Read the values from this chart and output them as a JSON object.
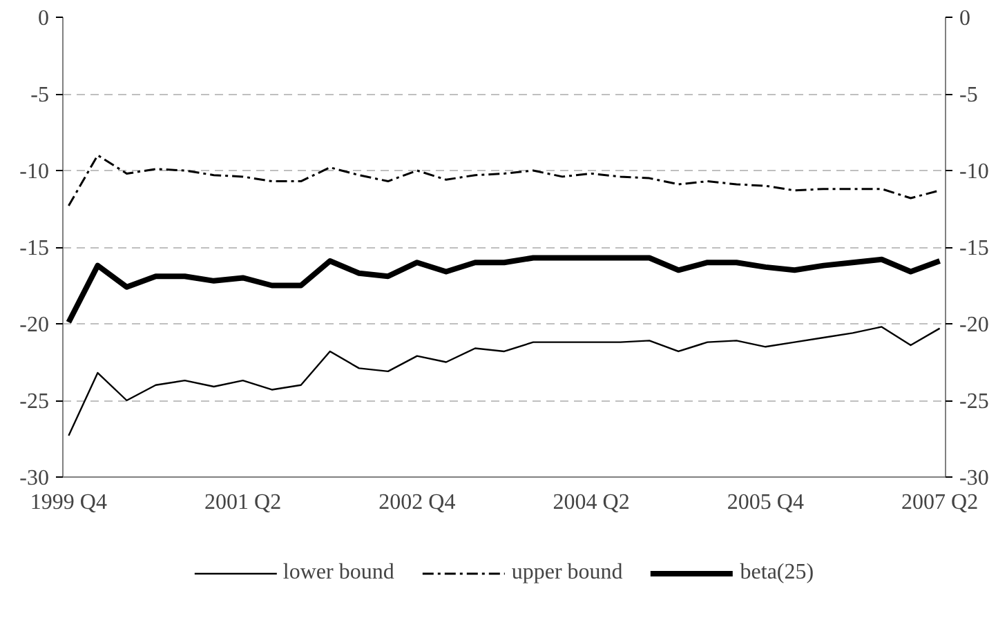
{
  "chart_data": {
    "type": "line",
    "categories": [
      "1999 Q4",
      null,
      null,
      null,
      null,
      null,
      "2001 Q2",
      null,
      null,
      null,
      null,
      null,
      "2002 Q4",
      null,
      null,
      null,
      null,
      null,
      "2004 Q2",
      null,
      null,
      null,
      null,
      null,
      "2005 Q4",
      null,
      null,
      null,
      null,
      null,
      "2007 Q2"
    ],
    "series": [
      {
        "name": "lower bound",
        "color": "#000000",
        "line_style": "solid",
        "values": [
          -27.3,
          -23.2,
          -25.0,
          -24.0,
          -23.7,
          -24.1,
          -23.7,
          -24.3,
          -24.0,
          -21.8,
          -22.9,
          -23.1,
          -22.1,
          -22.5,
          -21.6,
          -21.8,
          -21.2,
          -21.2,
          -21.2,
          -21.2,
          -21.1,
          -21.8,
          -21.2,
          -21.1,
          -21.5,
          -21.2,
          -20.9,
          -20.6,
          -20.2,
          -21.4,
          -20.3
        ]
      },
      {
        "name": "upper bound",
        "color": "#000000",
        "line_style": "dashdot",
        "values": [
          -12.3,
          -9.0,
          -10.2,
          -9.9,
          -10.0,
          -10.3,
          -10.4,
          -10.7,
          -10.7,
          -9.8,
          -10.3,
          -10.7,
          -10.0,
          -10.6,
          -10.3,
          -10.2,
          -10.0,
          -10.4,
          -10.2,
          -10.4,
          -10.5,
          -10.9,
          -10.7,
          -10.9,
          -11.0,
          -11.3,
          -11.2,
          -11.2,
          -11.2,
          -11.8,
          -11.3
        ]
      },
      {
        "name": "beta(25)",
        "color": "#000000",
        "line_style": "solid",
        "values": [
          -19.9,
          -16.2,
          -17.6,
          -16.9,
          -16.9,
          -17.2,
          -17.0,
          -17.5,
          -17.5,
          -15.9,
          -16.7,
          -16.9,
          -16.0,
          -16.6,
          -16.0,
          -16.0,
          -15.7,
          -15.7,
          -15.7,
          -15.7,
          -15.7,
          -16.5,
          -16.0,
          -16.0,
          -16.3,
          -16.5,
          -16.2,
          -16.0,
          -15.8,
          -16.6,
          -15.9
        ]
      }
    ],
    "ylim": [
      -30,
      0
    ],
    "yticks": [
      -30,
      -25,
      -20,
      -15,
      -10,
      -5,
      0
    ],
    "y2lim": [
      -30,
      0
    ],
    "y2ticks": [
      -30,
      -25,
      -20,
      -15,
      -10,
      -5,
      0
    ],
    "grid": "y",
    "legend": "bottom"
  }
}
